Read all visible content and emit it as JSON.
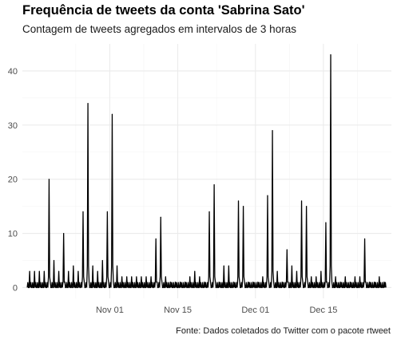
{
  "chart_data": {
    "type": "line",
    "title": "Frequência de tweets da conta 'Sabrina Sato'",
    "subtitle": "Contagem de tweets agregados em intervalos de 3 horas",
    "caption": "Fonte: Dados coletados do Twitter com o pacote rtweet",
    "xlabel": "",
    "ylabel": "",
    "x_axis_type": "date",
    "xlim": [
      "2018-10-14",
      "2018-12-29"
    ],
    "ylim": [
      -2,
      45
    ],
    "x_ticks": [
      {
        "date": "2018-11-01",
        "label": "Nov 01"
      },
      {
        "date": "2018-11-15",
        "label": "Nov 15"
      },
      {
        "date": "2018-12-01",
        "label": "Dec 01"
      },
      {
        "date": "2018-12-15",
        "label": "Dec 15"
      }
    ],
    "y_ticks": [
      0,
      10,
      20,
      30,
      40
    ],
    "grid": true,
    "line_color": "#000000",
    "grid_color": "#ebebeb",
    "series": [
      {
        "x": [
          "2018-10-15",
          "2018-10-16",
          "2018-10-17",
          "2018-10-18",
          "2018-10-19",
          "2018-10-20",
          "2018-10-21",
          "2018-10-22",
          "2018-10-23",
          "2018-10-24",
          "2018-10-25",
          "2018-10-26",
          "2018-10-27",
          "2018-10-28",
          "2018-10-29",
          "2018-10-30",
          "2018-10-31",
          "2018-11-01",
          "2018-11-02",
          "2018-11-03",
          "2018-11-04",
          "2018-11-05",
          "2018-11-06",
          "2018-11-07",
          "2018-11-08",
          "2018-11-09",
          "2018-11-10",
          "2018-11-11",
          "2018-11-12",
          "2018-11-13",
          "2018-11-14",
          "2018-11-15",
          "2018-11-16",
          "2018-11-17",
          "2018-11-18",
          "2018-11-19",
          "2018-11-20",
          "2018-11-21",
          "2018-11-22",
          "2018-11-23",
          "2018-11-24",
          "2018-11-25",
          "2018-11-26",
          "2018-11-27",
          "2018-11-28",
          "2018-11-29",
          "2018-11-30",
          "2018-12-01",
          "2018-12-02",
          "2018-12-03",
          "2018-12-04",
          "2018-12-05",
          "2018-12-06",
          "2018-12-07",
          "2018-12-08",
          "2018-12-09",
          "2018-12-10",
          "2018-12-11",
          "2018-12-12",
          "2018-12-13",
          "2018-12-14",
          "2018-12-15",
          "2018-12-16",
          "2018-12-17",
          "2018-12-18",
          "2018-12-19",
          "2018-12-20",
          "2018-12-21",
          "2018-12-22",
          "2018-12-23",
          "2018-12-24",
          "2018-12-25",
          "2018-12-26",
          "2018-12-27"
        ],
        "y": [
          3,
          3,
          3,
          3,
          20,
          5,
          3,
          10,
          3,
          4,
          3,
          14,
          34,
          4,
          3,
          5,
          14,
          32,
          4,
          2,
          2,
          2,
          2,
          2,
          2,
          2,
          9,
          13,
          2,
          1,
          1,
          1,
          1,
          2,
          3,
          2,
          1,
          14,
          19,
          1,
          4,
          4,
          1,
          16,
          15,
          1,
          1,
          1,
          2,
          17,
          29,
          3,
          1,
          7,
          4,
          3,
          16,
          15,
          2,
          2,
          3,
          12,
          43,
          2,
          1,
          2,
          1,
          2,
          2,
          9,
          1,
          1,
          2,
          1
        ]
      }
    ]
  }
}
